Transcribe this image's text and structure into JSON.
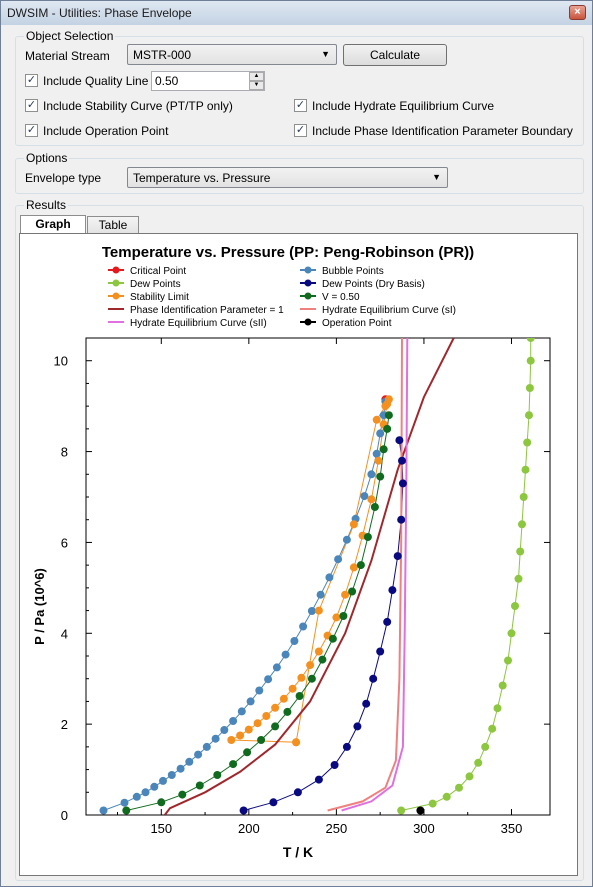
{
  "window": {
    "title": "DWSIM - Utilities: Phase Envelope",
    "close_glyph": "×"
  },
  "object_selection": {
    "legend": "Object Selection",
    "material_stream_label": "Material Stream",
    "material_stream_value": "MSTR-000",
    "calculate_label": "Calculate",
    "quality_line_label": "Include Quality Line",
    "quality_value": "0.50",
    "stability_label": "Include Stability Curve (PT/TP only)",
    "hydrate_label": "Include Hydrate Equilibrium Curve",
    "operation_label": "Include Operation Point",
    "pip_label": "Include Phase Identification Parameter Boundary",
    "check_glyph": "✓"
  },
  "options": {
    "legend": "Options",
    "envelope_label": "Envelope type",
    "envelope_value": "Temperature vs. Pressure"
  },
  "results": {
    "legend": "Results",
    "tabs": [
      "Graph",
      "Table"
    ]
  },
  "chart_data": {
    "type": "scatter",
    "title": "Temperature vs. Pressure (PP: Peng-Robinson (PR))",
    "xlabel": "T / K",
    "ylabel": "P / Pa (10^6)",
    "xlim": [
      107,
      372
    ],
    "ylim": [
      0,
      10.5
    ],
    "xticks": [
      150,
      200,
      250,
      300,
      350
    ],
    "yticks": [
      0,
      2,
      4,
      6,
      8,
      10
    ],
    "legend_position": "top",
    "series": [
      {
        "name": "Critical Point",
        "color": "#e41a1c",
        "marker": true,
        "line": false,
        "points": [
          [
            278,
            9.15
          ]
        ]
      },
      {
        "name": "Bubble Points",
        "color": "#4a86b9",
        "marker": true,
        "line": true,
        "points": [
          [
            117,
            0.1
          ],
          [
            129,
            0.27
          ],
          [
            136,
            0.4
          ],
          [
            141,
            0.5
          ],
          [
            146,
            0.62
          ],
          [
            151,
            0.75
          ],
          [
            156,
            0.88
          ],
          [
            161,
            1.02
          ],
          [
            166,
            1.17
          ],
          [
            171,
            1.33
          ],
          [
            176,
            1.5
          ],
          [
            181,
            1.68
          ],
          [
            186,
            1.87
          ],
          [
            191,
            2.07
          ],
          [
            196,
            2.28
          ],
          [
            201,
            2.5
          ],
          [
            206,
            2.74
          ],
          [
            211,
            2.99
          ],
          [
            216,
            3.25
          ],
          [
            221,
            3.53
          ],
          [
            226,
            3.83
          ],
          [
            231,
            4.15
          ],
          [
            236,
            4.49
          ],
          [
            241,
            4.85
          ],
          [
            246,
            5.23
          ],
          [
            251,
            5.63
          ],
          [
            256,
            6.06
          ],
          [
            261,
            6.52
          ],
          [
            266,
            7.02
          ],
          [
            270,
            7.5
          ],
          [
            273,
            7.95
          ],
          [
            275,
            8.4
          ],
          [
            277,
            8.8
          ],
          [
            278,
            9.1
          ]
        ]
      },
      {
        "name": "Dew Points",
        "color": "#8dc63f",
        "marker": true,
        "line": true,
        "points": [
          [
            287,
            0.1
          ],
          [
            305,
            0.25
          ],
          [
            313,
            0.4
          ],
          [
            320,
            0.6
          ],
          [
            326,
            0.85
          ],
          [
            331,
            1.15
          ],
          [
            335,
            1.5
          ],
          [
            339,
            1.9
          ],
          [
            342,
            2.35
          ],
          [
            345,
            2.85
          ],
          [
            348,
            3.4
          ],
          [
            350,
            4.0
          ],
          [
            352,
            4.6
          ],
          [
            354,
            5.2
          ],
          [
            355,
            5.8
          ],
          [
            356,
            6.4
          ],
          [
            357,
            7.0
          ],
          [
            358,
            7.6
          ],
          [
            359,
            8.2
          ],
          [
            360,
            8.8
          ],
          [
            360.5,
            9.4
          ],
          [
            361,
            10.0
          ],
          [
            361,
            10.5
          ]
        ]
      },
      {
        "name": "Dew Points (Dry Basis)",
        "color": "#0a0a80",
        "marker": true,
        "line": true,
        "points": [
          [
            197,
            0.1
          ],
          [
            214,
            0.28
          ],
          [
            228,
            0.5
          ],
          [
            240,
            0.78
          ],
          [
            249,
            1.1
          ],
          [
            256,
            1.5
          ],
          [
            262,
            1.95
          ],
          [
            267,
            2.45
          ],
          [
            271,
            3.0
          ],
          [
            275,
            3.6
          ],
          [
            279,
            4.25
          ],
          [
            282,
            4.95
          ],
          [
            285,
            5.7
          ],
          [
            287,
            6.5
          ],
          [
            288,
            7.3
          ],
          [
            287.5,
            7.8
          ],
          [
            286,
            8.25
          ]
        ]
      },
      {
        "name": "Stability Limit",
        "color": "#f39020",
        "marker": true,
        "line": true,
        "points": [
          [
            227,
            1.6
          ],
          [
            190,
            1.65
          ],
          [
            195,
            1.75
          ],
          [
            200,
            1.88
          ],
          [
            205,
            2.02
          ],
          [
            210,
            2.18
          ],
          [
            215,
            2.36
          ],
          [
            220,
            2.56
          ],
          [
            225,
            2.78
          ],
          [
            230,
            3.02
          ],
          [
            235,
            3.3
          ],
          [
            240,
            3.6
          ],
          [
            245,
            3.95
          ],
          [
            250,
            4.35
          ],
          [
            255,
            4.85
          ],
          [
            260,
            5.45
          ],
          [
            265,
            6.15
          ],
          [
            270,
            6.95
          ],
          [
            274,
            7.8
          ],
          [
            277,
            8.6
          ],
          [
            279,
            9.05
          ],
          [
            280,
            9.15
          ],
          [
            278,
            9.0
          ],
          [
            273,
            8.7
          ],
          [
            260,
            6.4
          ],
          [
            240,
            4.5
          ],
          [
            227,
            1.6
          ]
        ]
      },
      {
        "name": "V = 0.50",
        "color": "#116b1f",
        "marker": true,
        "line": true,
        "points": [
          [
            130,
            0.1
          ],
          [
            150,
            0.28
          ],
          [
            162,
            0.45
          ],
          [
            172,
            0.65
          ],
          [
            182,
            0.88
          ],
          [
            191,
            1.12
          ],
          [
            199,
            1.38
          ],
          [
            207,
            1.65
          ],
          [
            215,
            1.95
          ],
          [
            222,
            2.27
          ],
          [
            229,
            2.62
          ],
          [
            236,
            3.0
          ],
          [
            242,
            3.42
          ],
          [
            248,
            3.88
          ],
          [
            254,
            4.38
          ],
          [
            259,
            4.92
          ],
          [
            264,
            5.5
          ],
          [
            268,
            6.12
          ],
          [
            272,
            6.78
          ],
          [
            275,
            7.45
          ],
          [
            277,
            8.05
          ],
          [
            279,
            8.5
          ],
          [
            280,
            8.8
          ]
        ]
      },
      {
        "name": "Phase Identification Parameter = 1",
        "color": "#a0282c",
        "marker": false,
        "line": true,
        "points": [
          [
            152,
            0.0
          ],
          [
            155,
            0.15
          ],
          [
            175,
            0.5
          ],
          [
            195,
            0.95
          ],
          [
            215,
            1.55
          ],
          [
            235,
            2.5
          ],
          [
            255,
            4.0
          ],
          [
            270,
            5.6
          ],
          [
            285,
            7.6
          ],
          [
            300,
            9.2
          ],
          [
            317,
            10.5
          ]
        ]
      },
      {
        "name": "Hydrate Equilibrium Curve (sI)",
        "color": "#f08080",
        "marker": false,
        "line": true,
        "points": [
          [
            245,
            0.1
          ],
          [
            265,
            0.3
          ],
          [
            278,
            0.6
          ],
          [
            284,
            1.2
          ],
          [
            286,
            3.0
          ],
          [
            287,
            6.0
          ],
          [
            287.5,
            10.5
          ]
        ]
      },
      {
        "name": "Hydrate Equilibrium Curve (sII)",
        "color": "#e070e0",
        "marker": false,
        "line": true,
        "points": [
          [
            253,
            0.1
          ],
          [
            270,
            0.3
          ],
          [
            282,
            0.65
          ],
          [
            288,
            1.5
          ],
          [
            289,
            4.0
          ],
          [
            290,
            7.5
          ],
          [
            290.5,
            10.5
          ]
        ]
      },
      {
        "name": "Operation Point",
        "color": "#000000",
        "marker": true,
        "line": false,
        "points": [
          [
            298,
            0.1
          ]
        ]
      }
    ]
  }
}
